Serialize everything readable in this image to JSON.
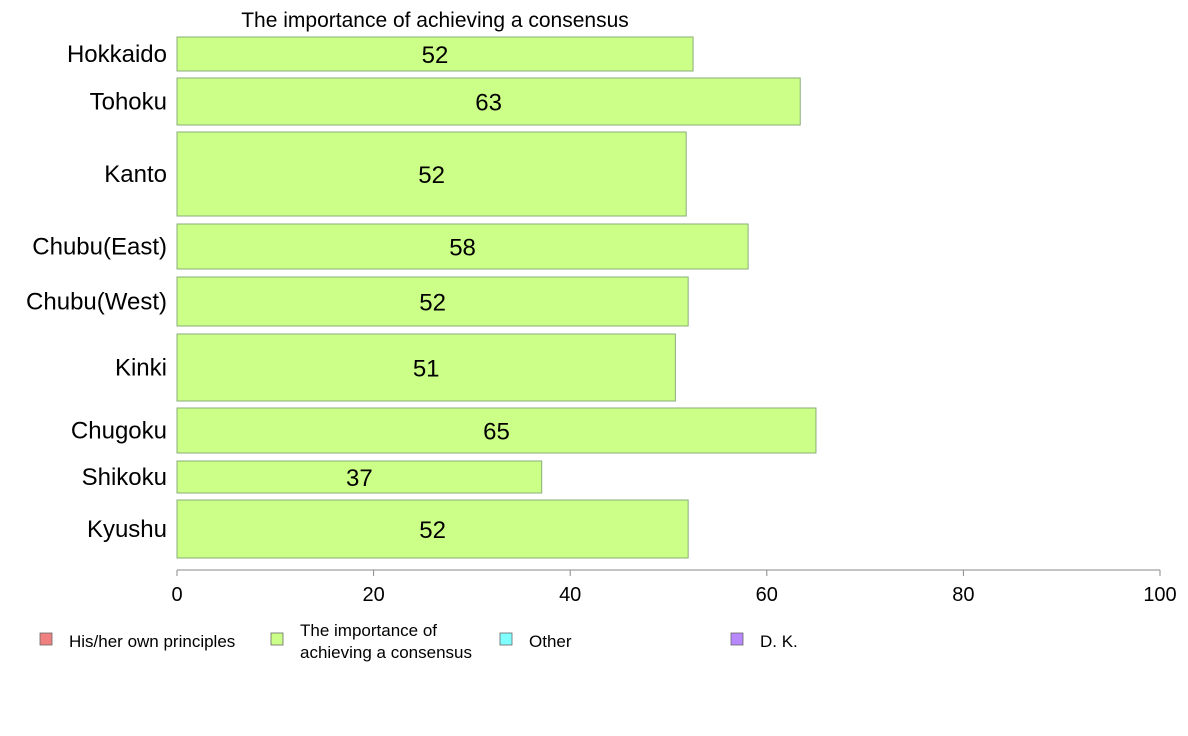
{
  "chart_data": {
    "type": "bar",
    "orientation": "horizontal",
    "title": "The importance of achieving a consensus",
    "categories": [
      "Hokkaido",
      "Tohoku",
      "Kanto",
      "Chubu(East)",
      "Chubu(West)",
      "Kinki",
      "Chugoku",
      "Shikoku",
      "Kyushu"
    ],
    "series": [
      {
        "name": "The importance of achieving a consensus",
        "values": [
          52.5,
          63.4,
          51.8,
          58.1,
          52.0,
          50.7,
          65.0,
          37.1,
          52.0
        ],
        "data_labels": [
          "52",
          "63",
          "52",
          "58",
          "52",
          "51",
          "65",
          "37",
          "52"
        ],
        "color": "#ccff88"
      }
    ],
    "xlim": [
      0,
      100
    ],
    "xticks": [
      "0",
      "20",
      "40",
      "60",
      "80",
      "100"
    ],
    "xlabel": "",
    "ylabel": "",
    "grid": false,
    "legend_position": "bottom",
    "legend": [
      {
        "label_lines": [
          "His/her own principles"
        ],
        "color": "#f08080"
      },
      {
        "label_lines": [
          "The importance of",
          "achieving a consensus"
        ],
        "color": "#ccff88"
      },
      {
        "label_lines": [
          "Other"
        ],
        "color": "#80ffff"
      },
      {
        "label_lines": [
          "D. K."
        ],
        "color": "#b888ff"
      }
    ]
  }
}
